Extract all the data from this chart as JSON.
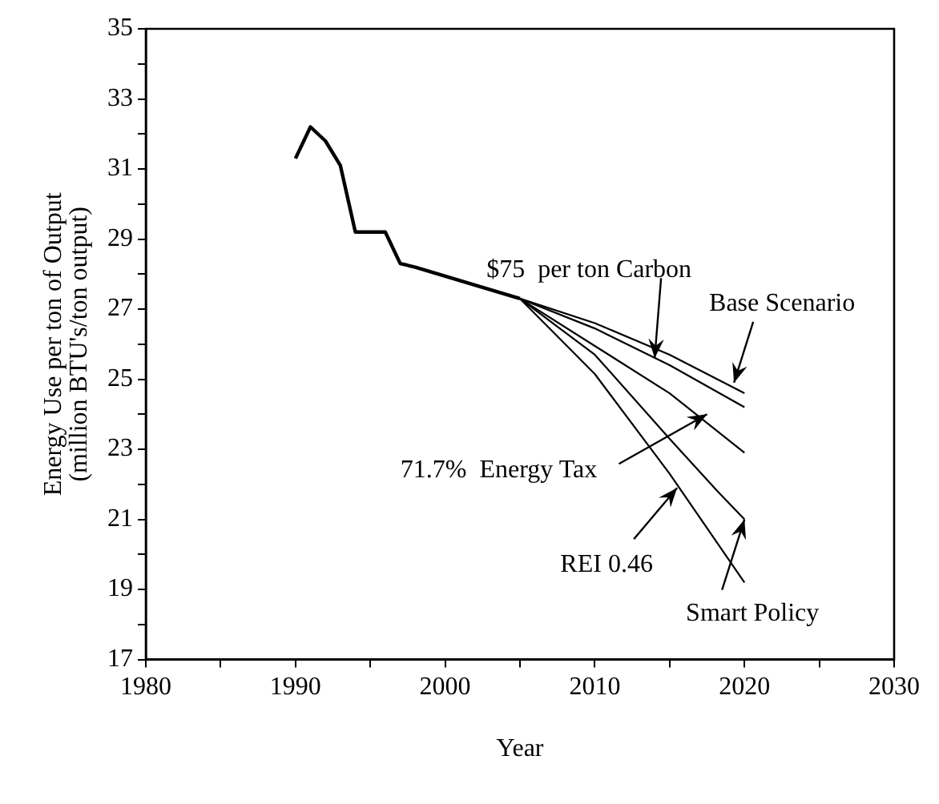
{
  "chart_data": {
    "type": "line",
    "xlabel": "Year",
    "ylabel": "Energy Use per ton of Output\n(million BTU's/ton output)",
    "xlim": [
      1980,
      2030
    ],
    "xticks": [
      1980,
      {
        "value": 1985,
        "label": null
      },
      1990,
      {
        "value": 1995,
        "label": null
      },
      2000,
      {
        "value": 2005,
        "label": null
      },
      2010,
      {
        "value": 2015,
        "label": null
      },
      2020,
      {
        "value": 2025,
        "label": null
      },
      2030
    ],
    "ylim": [
      17,
      35
    ],
    "yticks": [
      17,
      {
        "value": 18,
        "label": null
      },
      19,
      {
        "value": 20,
        "label": null
      },
      21,
      {
        "value": 22,
        "label": null
      },
      23,
      {
        "value": 24,
        "label": null
      },
      25,
      {
        "value": 26,
        "label": null
      },
      27,
      {
        "value": 28,
        "label": null
      },
      29,
      {
        "value": 30,
        "label": null
      },
      31,
      {
        "value": 32,
        "label": null
      },
      33,
      {
        "value": 34,
        "label": null
      },
      35
    ],
    "grid": false,
    "legend": false,
    "marker": "none",
    "line_style": "solid",
    "series": [
      {
        "color": "#000000",
        "x": [
          1990,
          1991,
          1992,
          1993,
          1994,
          1996,
          1997,
          1998,
          2005
        ],
        "values": [
          31.3,
          32.2,
          31.8,
          31.1,
          29.2,
          29.2,
          28.3,
          28.2,
          27.3
        ]
      },
      {
        "color": "#000000",
        "x": [
          2005,
          2010,
          2015,
          2020
        ],
        "values": [
          27.3,
          26.6,
          25.7,
          24.6
        ]
      },
      {
        "color": "#000000",
        "x": [
          2005,
          2010,
          2015,
          2020
        ],
        "values": [
          27.3,
          26.45,
          25.4,
          24.2
        ]
      },
      {
        "color": "#000000",
        "x": [
          2005,
          2010,
          2015,
          2020
        ],
        "values": [
          27.3,
          25.95,
          24.6,
          22.9
        ]
      },
      {
        "color": "#000000",
        "x": [
          2005,
          2010,
          2015,
          2018.2,
          2020
        ],
        "values": [
          27.3,
          25.7,
          23.3,
          21.8,
          21.0
        ]
      },
      {
        "color": "#000000",
        "x": [
          2005,
          2010,
          2015,
          2020
        ],
        "values": [
          27.3,
          25.15,
          22.3,
          19.2
        ]
      }
    ],
    "annotations": [
      {
        "text": "$75  per ton Carbon",
        "x": 2014,
        "y": 25.6
      },
      {
        "text": "Base Scenario",
        "x": 2019.3,
        "y": 24.9
      },
      {
        "text": "71.7%  Energy Tax",
        "x": 2017.5,
        "y": 24.0
      },
      {
        "text": "REI 0.46",
        "x": 2015.5,
        "y": 21.9
      },
      {
        "text": "Smart Policy",
        "x": 2020,
        "y": 21.0
      }
    ]
  }
}
